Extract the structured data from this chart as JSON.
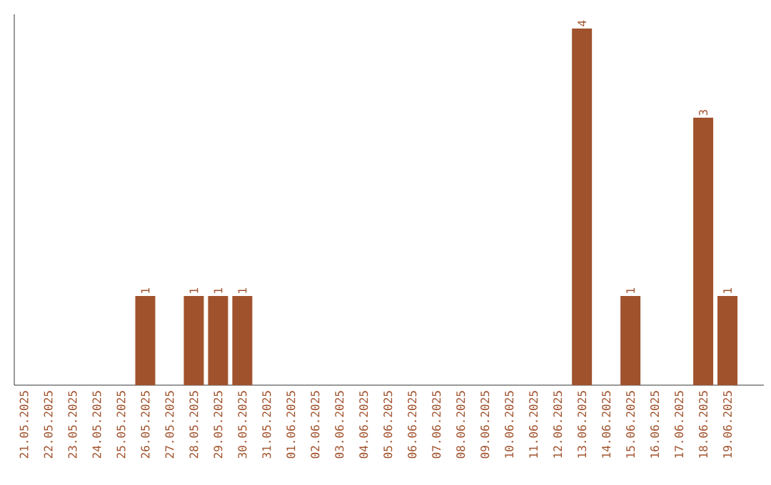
{
  "chart_data": {
    "type": "bar",
    "categories": [
      "21.05.2025",
      "22.05.2025",
      "23.05.2025",
      "24.05.2025",
      "25.05.2025",
      "26.05.2025",
      "27.05.2025",
      "28.05.2025",
      "29.05.2025",
      "30.05.2025",
      "31.05.2025",
      "01.06.2025",
      "02.06.2025",
      "03.06.2025",
      "04.06.2025",
      "05.06.2025",
      "06.06.2025",
      "07.06.2025",
      "08.06.2025",
      "09.06.2025",
      "10.06.2025",
      "11.06.2025",
      "12.06.2025",
      "13.06.2025",
      "14.06.2025",
      "15.06.2025",
      "16.06.2025",
      "17.06.2025",
      "18.06.2025",
      "19.06.2025"
    ],
    "values": [
      0,
      0,
      0,
      0,
      0,
      1,
      0,
      1,
      1,
      1,
      0,
      0,
      0,
      0,
      0,
      0,
      0,
      0,
      0,
      0,
      0,
      0,
      0,
      4,
      0,
      1,
      0,
      0,
      3,
      1
    ],
    "value_labels": [
      null,
      null,
      null,
      null,
      null,
      "1",
      null,
      "1",
      "1",
      "1",
      null,
      null,
      null,
      null,
      null,
      null,
      null,
      null,
      null,
      null,
      null,
      null,
      null,
      "4",
      null,
      "1",
      null,
      null,
      "3",
      "1"
    ],
    "color": "#a0522d",
    "ylim": [
      0,
      4.16
    ],
    "tick_labels": "x",
    "grid": false
  }
}
